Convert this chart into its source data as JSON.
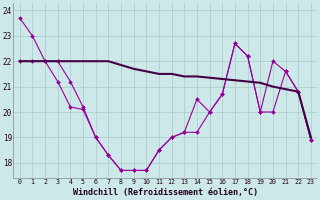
{
  "xlabel": "Windchill (Refroidissement éolien,°C)",
  "x_values": [
    0,
    1,
    2,
    3,
    4,
    5,
    6,
    7,
    8,
    9,
    10,
    11,
    12,
    13,
    14,
    15,
    16,
    17,
    18,
    19,
    20,
    21,
    22,
    23
  ],
  "line1": [
    23.7,
    23.0,
    22.0,
    21.2,
    20.2,
    20.1,
    19.0,
    18.3,
    17.7,
    17.7,
    17.7,
    18.5,
    19.0,
    19.2,
    20.5,
    20.0,
    20.7,
    22.7,
    22.2,
    20.0,
    22.0,
    21.6,
    20.8,
    18.9
  ],
  "line2": [
    22.0,
    22.0,
    22.0,
    22.0,
    22.0,
    22.0,
    22.0,
    22.0,
    21.85,
    21.7,
    21.6,
    21.5,
    21.5,
    21.4,
    21.4,
    21.35,
    21.3,
    21.25,
    21.2,
    21.15,
    21.0,
    20.9,
    20.8,
    19.0
  ],
  "line3": [
    22.0,
    22.0,
    22.0,
    22.0,
    21.2,
    20.2,
    19.0,
    18.3,
    17.7,
    17.7,
    17.7,
    18.5,
    19.0,
    19.2,
    19.2,
    20.0,
    20.7,
    22.7,
    22.2,
    20.0,
    20.0,
    21.6,
    20.8,
    18.9
  ],
  "color_main": "#990099",
  "color_trend": "#440044",
  "color_second": "#990099",
  "bg_color": "#cce8e8",
  "grid_color": "#aacccc",
  "ylim": [
    17.4,
    24.3
  ],
  "yticks": [
    18,
    19,
    20,
    21,
    22,
    23,
    24
  ],
  "xticks": [
    0,
    1,
    2,
    3,
    4,
    5,
    6,
    7,
    8,
    9,
    10,
    11,
    12,
    13,
    14,
    15,
    16,
    17,
    18,
    19,
    20,
    21,
    22,
    23
  ]
}
